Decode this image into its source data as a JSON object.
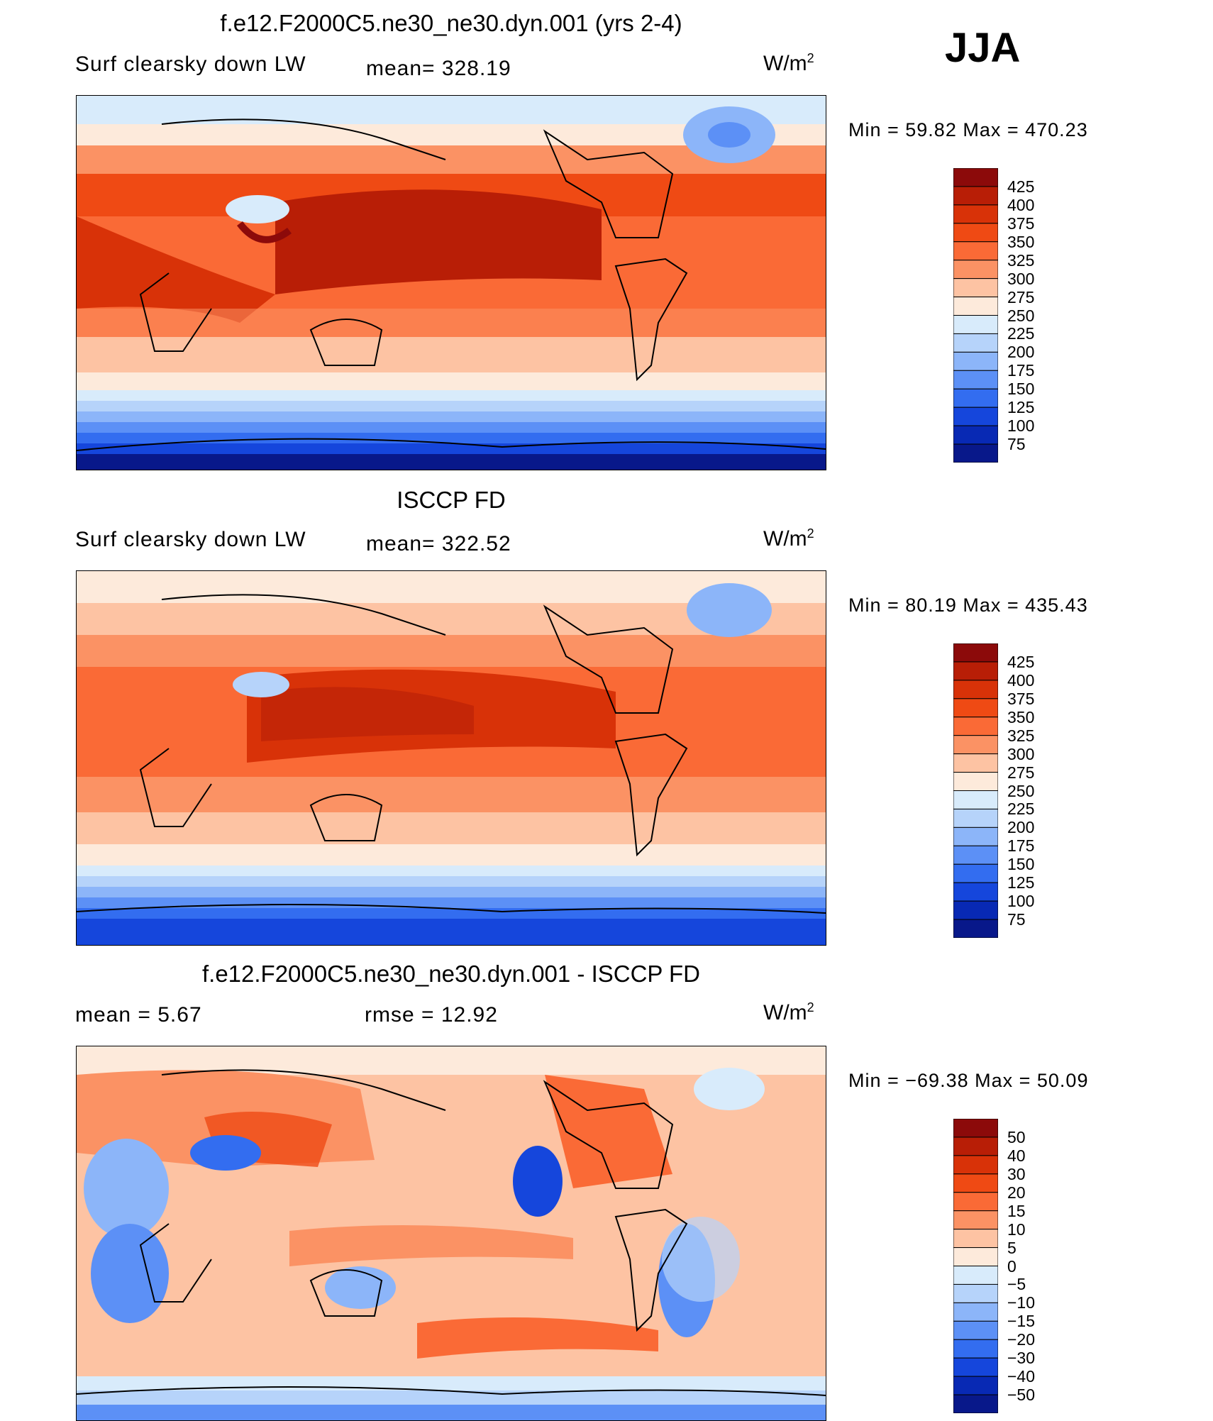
{
  "season": "JJA",
  "units_base": "W/m",
  "units_exp": "2",
  "panels": [
    {
      "id": "model",
      "title": "f.e12.F2000C5.ne30_ne30.dyn.001 (yrs 2-4)",
      "left_label": "Surf clearsky down LW",
      "center_label": "mean=  328.19",
      "minmax": "Min =   59.82 Max = 470.23",
      "palette": "full",
      "levels": [
        "425",
        "400",
        "375",
        "350",
        "325",
        "300",
        "275",
        "250",
        "225",
        "200",
        "175",
        "150",
        "125",
        "100",
        "75"
      ]
    },
    {
      "id": "obs",
      "title": "ISCCP FD",
      "left_label": "Surf clearsky down LW",
      "center_label": "mean=  322.52",
      "minmax": "Min =   80.19 Max = 435.43",
      "palette": "full",
      "levels": [
        "425",
        "400",
        "375",
        "350",
        "325",
        "300",
        "275",
        "250",
        "225",
        "200",
        "175",
        "150",
        "125",
        "100",
        "75"
      ]
    },
    {
      "id": "diff",
      "title": "f.e12.F2000C5.ne30_ne30.dyn.001 - ISCCP FD",
      "left_label": "mean =     5.67",
      "center_label": "rmse =    12.92",
      "minmax": "Min = −69.38 Max =    50.09",
      "palette": "diff",
      "levels": [
        "50",
        "40",
        "30",
        "20",
        "15",
        "10",
        "5",
        "0",
        "−5",
        "−10",
        "−15",
        "−20",
        "−30",
        "−40",
        "−50"
      ]
    }
  ],
  "colors": {
    "full": [
      "#8c0a0a",
      "#b81e06",
      "#d83208",
      "#ef4a14",
      "#fa6a36",
      "#fb9264",
      "#fdc3a3",
      "#fdeadb",
      "#d8ebfb",
      "#b6d3fa",
      "#8cb5f9",
      "#5c90f6",
      "#336df0",
      "#1546dc",
      "#0829b4",
      "#08188a"
    ],
    "diff": [
      "#8c0a0a",
      "#b81e06",
      "#d83208",
      "#ef4a14",
      "#fa6a36",
      "#fb9264",
      "#fdc3a3",
      "#fdeadb",
      "#d8ebfb",
      "#b6d3fa",
      "#8cb5f9",
      "#5c90f6",
      "#336df0",
      "#1546dc",
      "#0829b4",
      "#08188a"
    ]
  }
}
